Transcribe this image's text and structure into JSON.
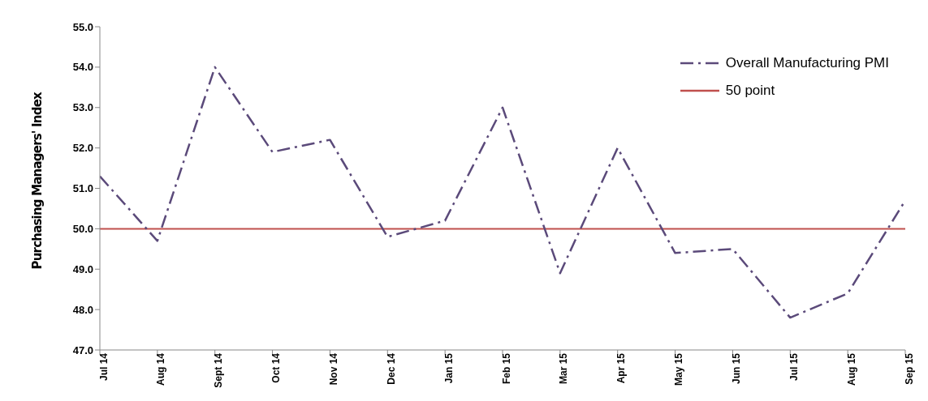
{
  "chart_data": {
    "type": "line",
    "ylabel": "Purchasing Managers' Index",
    "categories": [
      "Jul 14",
      "Aug 14",
      "Sept 14",
      "Oct 14",
      "Nov 14",
      "Dec 14",
      "Jan 15",
      "Feb 15",
      "Mar 15",
      "Apr 15",
      "May 15",
      "Jun 15",
      "Jul 15",
      "Aug 15",
      "Sep 15"
    ],
    "series": [
      {
        "name": "Overall Manufacturing PMI",
        "color": "#5b4a7a",
        "values": [
          51.3,
          49.7,
          54.0,
          51.9,
          52.2,
          49.8,
          50.2,
          53.0,
          48.9,
          52.0,
          49.4,
          49.5,
          47.8,
          48.4,
          50.7
        ]
      }
    ],
    "ylim": [
      47,
      55
    ],
    "yticks": [
      {
        "value": 47,
        "label": "47.0"
      },
      {
        "value": 48,
        "label": "48.0"
      },
      {
        "value": 49,
        "label": "49.0"
      },
      {
        "value": 50,
        "label": "50.0"
      },
      {
        "value": 51,
        "label": "51.0"
      },
      {
        "value": 52,
        "label": "52.0"
      },
      {
        "value": 53,
        "label": "53.0"
      },
      {
        "value": 54,
        "label": "54.0"
      },
      {
        "value": 55,
        "label": "55.0"
      }
    ],
    "ref_lines": [
      {
        "axis": "y",
        "value": 50,
        "label": "50 point",
        "color": "#c0504d",
        "line_style": "solid"
      }
    ],
    "grid": false,
    "legend": "top right",
    "marker": "none",
    "line_style": "dashed"
  }
}
